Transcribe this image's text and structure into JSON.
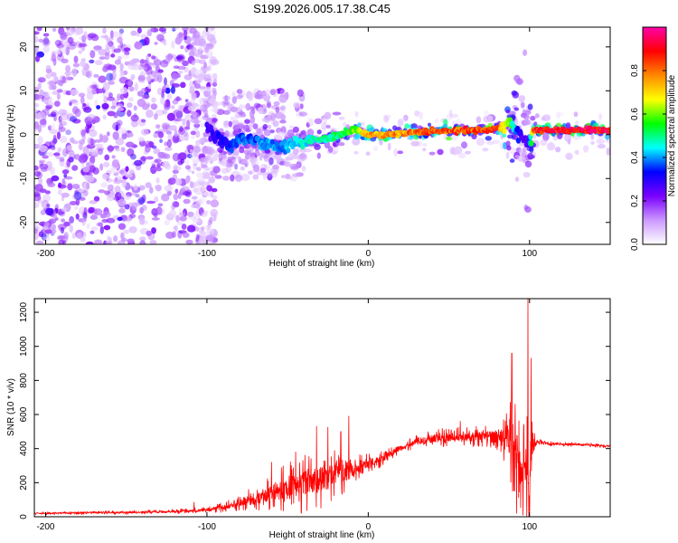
{
  "figure_title": "S199.2026.005.17.38.C45",
  "chart_data": [
    {
      "type": "heatmap",
      "name": "spectrogram",
      "title": "S199.2026.005.17.38.C45",
      "xlabel": "Height of straight line (km)",
      "ylabel": "Frequency (Hz)",
      "xlim": [
        -207,
        150
      ],
      "ylim": [
        -25,
        24.5
      ],
      "xticks": [
        -200,
        -100,
        0,
        100
      ],
      "yticks": [
        -20,
        -10,
        0,
        10,
        20
      ],
      "colorbar": {
        "label": "Normalized spectral amplitude",
        "range": [
          0,
          1
        ],
        "ticks": [
          "0.0",
          "0.2",
          "0.4",
          "0.6",
          "0.8"
        ],
        "tick_values": [
          0.0,
          0.2,
          0.4,
          0.6,
          0.8
        ],
        "stops": [
          "#ffffff",
          "#cc99ff",
          "#7a00ff",
          "#0000ff",
          "#00ffff",
          "#00ff00",
          "#ffff00",
          "#ff8800",
          "#ff0000",
          "#ff00aa"
        ]
      },
      "noise_regions": [
        {
          "x_range": [
            -207,
            -110
          ],
          "y_range": [
            -25,
            24.5
          ],
          "density": "high",
          "amplitude": 0.15
        },
        {
          "x_range": [
            -110,
            -95
          ],
          "y_range": [
            -25,
            24.5
          ],
          "density": "medium",
          "amplitude": 0.08
        },
        {
          "x_range": [
            -95,
            -40
          ],
          "y_range": [
            -10,
            10
          ],
          "density": "medium",
          "amplitude": 0.1
        },
        {
          "x_range": [
            -40,
            150
          ],
          "y_range": [
            -5,
            5
          ],
          "density": "low",
          "amplitude": 0.06
        }
      ],
      "signal_track": [
        {
          "x": -100,
          "freq": 1.5,
          "amp": 0.28,
          "width": 5
        },
        {
          "x": -93,
          "freq": -1.0,
          "amp": 0.32,
          "width": 4
        },
        {
          "x": -85,
          "freq": -2.5,
          "amp": 0.35,
          "width": 5
        },
        {
          "x": -78,
          "freq": -1.0,
          "amp": 0.4,
          "width": 4
        },
        {
          "x": -70,
          "freq": -1.5,
          "amp": 0.38,
          "width": 4
        },
        {
          "x": -62,
          "freq": -2.0,
          "amp": 0.42,
          "width": 3
        },
        {
          "x": -55,
          "freq": -3.0,
          "amp": 0.4,
          "width": 3
        },
        {
          "x": -45,
          "freq": -2.0,
          "amp": 0.45,
          "width": 3
        },
        {
          "x": -35,
          "freq": -1.0,
          "amp": 0.5,
          "width": 2.5
        },
        {
          "x": -25,
          "freq": -1.0,
          "amp": 0.5,
          "width": 2
        },
        {
          "x": -15,
          "freq": 0.5,
          "amp": 0.55,
          "width": 2
        },
        {
          "x": -8,
          "freq": 1.0,
          "amp": 0.65,
          "width": 2
        },
        {
          "x": 0,
          "freq": 0.0,
          "amp": 0.78,
          "width": 1.8
        },
        {
          "x": 10,
          "freq": 0.0,
          "amp": 0.8,
          "width": 1.6
        },
        {
          "x": 25,
          "freq": 0.5,
          "amp": 0.82,
          "width": 1.6
        },
        {
          "x": 40,
          "freq": 0.8,
          "amp": 0.85,
          "width": 1.5
        },
        {
          "x": 55,
          "freq": 0.9,
          "amp": 0.87,
          "width": 1.5
        },
        {
          "x": 70,
          "freq": 1.0,
          "amp": 0.88,
          "width": 1.5
        },
        {
          "x": 80,
          "freq": 1.5,
          "amp": 0.9,
          "width": 1.5
        },
        {
          "x": 88,
          "freq": 2.5,
          "amp": 0.6,
          "width": 6
        },
        {
          "x": 94,
          "freq": 0.0,
          "amp": 0.3,
          "width": 14
        },
        {
          "x": 99,
          "freq": -2.0,
          "amp": 0.25,
          "width": 18
        },
        {
          "x": 103,
          "freq": 1.0,
          "amp": 0.92,
          "width": 1.5
        },
        {
          "x": 120,
          "freq": 1.0,
          "amp": 0.95,
          "width": 1.5
        },
        {
          "x": 140,
          "freq": 1.0,
          "amp": 0.97,
          "width": 1.5
        },
        {
          "x": 150,
          "freq": 1.0,
          "amp": 0.97,
          "width": 1.5
        }
      ]
    },
    {
      "type": "line",
      "name": "snr",
      "title": "",
      "xlabel": "Height of straight line (km)",
      "ylabel": "SNR (10 * v/v)",
      "xlim": [
        -207,
        150
      ],
      "ylim": [
        0,
        1280
      ],
      "xticks": [
        -200,
        -100,
        0,
        100
      ],
      "yticks": [
        0,
        200,
        400,
        600,
        800,
        1000,
        1200
      ],
      "color": "#ff0000",
      "series": [
        {
          "name": "SNR",
          "x": [
            -207,
            -180,
            -150,
            -120,
            -100,
            -90,
            -80,
            -70,
            -60,
            -50,
            -40,
            -30,
            -20,
            -10,
            0,
            10,
            20,
            30,
            40,
            50,
            60,
            70,
            80,
            85,
            88,
            91,
            94,
            97,
            99,
            101,
            103,
            105,
            110,
            120,
            130,
            140,
            150
          ],
          "y": [
            20,
            22,
            25,
            30,
            40,
            55,
            80,
            110,
            140,
            170,
            200,
            220,
            250,
            280,
            300,
            350,
            400,
            440,
            460,
            465,
            465,
            470,
            470,
            460,
            440,
            400,
            340,
            270,
            200,
            300,
            430,
            440,
            430,
            425,
            425,
            420,
            415
          ],
          "spread": [
            8,
            10,
            12,
            14,
            18,
            30,
            45,
            80,
            110,
            150,
            180,
            180,
            150,
            120,
            80,
            40,
            30,
            40,
            50,
            60,
            60,
            60,
            80,
            150,
            250,
            300,
            330,
            350,
            500,
            300,
            60,
            25,
            15,
            12,
            12,
            12,
            12
          ]
        }
      ],
      "peaks": [
        {
          "x": -108,
          "y": 85
        },
        {
          "x": -60,
          "y": 320
        },
        {
          "x": -45,
          "y": 380
        },
        {
          "x": -32,
          "y": 530
        },
        {
          "x": -25,
          "y": 525
        },
        {
          "x": -17,
          "y": 500
        },
        {
          "x": -12,
          "y": 590
        },
        {
          "x": 57,
          "y": 560
        },
        {
          "x": 67,
          "y": 530
        },
        {
          "x": 89,
          "y": 960
        },
        {
          "x": 96,
          "y": 1100
        },
        {
          "x": 99,
          "y": 1280
        },
        {
          "x": 101,
          "y": 930
        }
      ],
      "troughs": [
        {
          "x": 92,
          "y": 20
        },
        {
          "x": 96,
          "y": 10
        },
        {
          "x": 100,
          "y": 30
        }
      ]
    }
  ]
}
